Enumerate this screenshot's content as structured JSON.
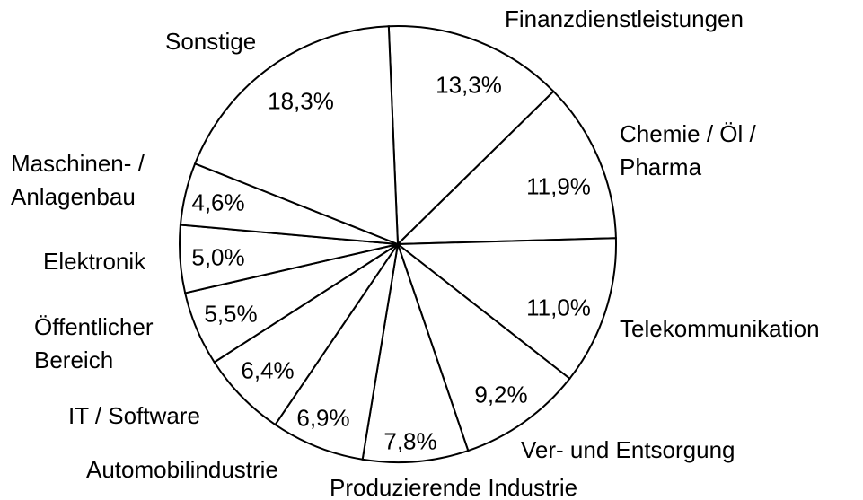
{
  "chart_data": {
    "type": "pie",
    "categories": [
      "Finanzdienstleistungen",
      "Chemie / Öl /\nPharma",
      "Telekommunikation",
      "Ver- und Entsorgung",
      "Produzierende Industrie",
      "Automobilindustrie",
      "IT / Software",
      "Öffentlicher\nBereich",
      "Elektronik",
      "Maschinen- /\nAnlagenbau",
      "Sonstige"
    ],
    "values": [
      13.3,
      11.9,
      11.0,
      9.2,
      7.8,
      6.9,
      6.4,
      5.5,
      5.0,
      4.6,
      18.3
    ],
    "value_labels": [
      "13,3%",
      "11,9%",
      "11,0%",
      "9,2%",
      "7,8%",
      "6,9%",
      "6,4%",
      "5,5%",
      "5,0%",
      "4,6%",
      "18,3%"
    ],
    "color": "#ffffff"
  }
}
